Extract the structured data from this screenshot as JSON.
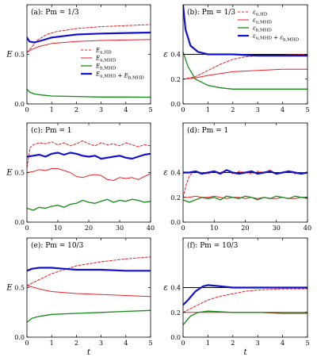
{
  "colors": {
    "red": "#e8222a",
    "green": "#158a16",
    "blue": "#1212cc",
    "black": "#000000",
    "axis": "#000000"
  },
  "chart_data": [
    {
      "id": "a",
      "type": "line",
      "annotation": "(a): Pm = 1/3",
      "xlabel": "",
      "ylabel": "E",
      "xlim": [
        0,
        5
      ],
      "ylim": [
        0,
        1.0
      ],
      "xticks": [
        "0",
        "1",
        "2",
        "3",
        "4",
        "5"
      ],
      "yticks": [
        "0.0",
        "0.5"
      ],
      "ytick_values": [
        0,
        0.5
      ],
      "legend": {
        "placement": "lower-right",
        "entries": [
          "E_u,HD",
          "E_u,MHD",
          "E_b,MHD",
          "E_u,MHD + E_b,MHD"
        ]
      },
      "series": [
        {
          "name": "E_u,HD",
          "color": "red",
          "dash": true,
          "width": 1,
          "x": [
            0,
            0.15,
            0.4,
            0.8,
            1.2,
            2,
            3,
            4,
            5
          ],
          "y": [
            0.52,
            0.56,
            0.64,
            0.7,
            0.73,
            0.76,
            0.78,
            0.79,
            0.8
          ]
        },
        {
          "name": "E_u,MHD",
          "color": "red",
          "width": 1,
          "x": [
            0,
            0.2,
            0.5,
            1,
            2,
            3,
            4,
            5
          ],
          "y": [
            0.52,
            0.55,
            0.58,
            0.61,
            0.63,
            0.64,
            0.645,
            0.65
          ]
        },
        {
          "name": "E_b,MHD",
          "color": "green",
          "width": 1.3,
          "x": [
            0,
            0.1,
            0.3,
            0.6,
            1,
            2,
            3,
            4,
            5
          ],
          "y": [
            0.15,
            0.12,
            0.1,
            0.09,
            0.08,
            0.075,
            0.07,
            0.07,
            0.068
          ]
        },
        {
          "name": "E_u,MHD + E_b,MHD",
          "color": "blue",
          "width": 2.2,
          "x": [
            0,
            0.1,
            0.3,
            0.6,
            1,
            2,
            3,
            4,
            5
          ],
          "y": [
            0.67,
            0.63,
            0.62,
            0.64,
            0.67,
            0.7,
            0.71,
            0.715,
            0.72
          ]
        }
      ]
    },
    {
      "id": "b",
      "type": "line",
      "annotation": "(b): Pm = 1/3",
      "xlabel": "",
      "ylabel": "ε",
      "xlim": [
        0,
        5
      ],
      "ylim": [
        0,
        0.8
      ],
      "xticks": [
        "0",
        "1",
        "2",
        "3",
        "4",
        "5"
      ],
      "yticks": [
        "0.0",
        "0.2",
        "0.4"
      ],
      "ytick_values": [
        0,
        0.2,
        0.4
      ],
      "legend": {
        "placement": "upper-right",
        "entries": [
          "ε_u,HD",
          "ε_u,MHD",
          "ε_b,MHD",
          "ε_u,MHD + ε_b,MHD"
        ]
      },
      "series": [
        {
          "name": "ref",
          "color": "black",
          "width": 1,
          "x": [
            0,
            5
          ],
          "y": [
            0.4,
            0.4
          ]
        },
        {
          "name": "ε_u,HD",
          "color": "red",
          "dash": true,
          "width": 1,
          "x": [
            0,
            0.5,
            1,
            1.5,
            2,
            2.5,
            3,
            4,
            5
          ],
          "y": [
            0.2,
            0.22,
            0.27,
            0.32,
            0.36,
            0.38,
            0.39,
            0.395,
            0.4
          ]
        },
        {
          "name": "ε_u,MHD",
          "color": "red",
          "width": 1,
          "x": [
            0,
            0.5,
            1,
            2,
            3,
            4,
            5
          ],
          "y": [
            0.2,
            0.21,
            0.23,
            0.26,
            0.27,
            0.28,
            0.28
          ]
        },
        {
          "name": "ε_b,MHD",
          "color": "green",
          "width": 1.3,
          "x": [
            0,
            0.2,
            0.5,
            1,
            1.5,
            2,
            3,
            4,
            5
          ],
          "y": [
            0.42,
            0.3,
            0.2,
            0.15,
            0.13,
            0.12,
            0.12,
            0.12,
            0.12
          ]
        },
        {
          "name": "ε_u,MHD + ε_b,MHD",
          "color": "blue",
          "width": 2.2,
          "x": [
            0,
            0.1,
            0.3,
            0.6,
            1,
            2,
            3,
            4,
            5
          ],
          "y": [
            0.8,
            0.6,
            0.47,
            0.42,
            0.4,
            0.4,
            0.39,
            0.39,
            0.39
          ]
        }
      ]
    },
    {
      "id": "c",
      "type": "line",
      "annotation": "(c): Pm = 1",
      "xlabel": "",
      "ylabel": "E",
      "xlim": [
        0,
        40
      ],
      "ylim": [
        0,
        1.0
      ],
      "xticks": [
        "0",
        "10",
        "20",
        "30",
        "40"
      ],
      "yticks": [
        "0.0",
        "0.5"
      ],
      "ytick_values": [
        0,
        0.5
      ],
      "series": [
        {
          "name": "E_u,HD",
          "color": "red",
          "dash": true,
          "width": 1,
          "x": [
            0,
            1,
            2,
            4,
            6,
            8,
            10,
            12,
            14,
            16,
            18,
            20,
            22,
            24,
            26,
            28,
            30,
            32,
            34,
            36,
            38,
            40
          ],
          "y": [
            0.55,
            0.75,
            0.78,
            0.8,
            0.79,
            0.81,
            0.78,
            0.8,
            0.77,
            0.79,
            0.82,
            0.79,
            0.77,
            0.8,
            0.78,
            0.79,
            0.77,
            0.8,
            0.78,
            0.76,
            0.78,
            0.77
          ]
        },
        {
          "name": "E_u,MHD",
          "color": "red",
          "width": 1,
          "x": [
            0,
            2,
            4,
            6,
            8,
            10,
            12,
            14,
            16,
            18,
            20,
            22,
            24,
            26,
            28,
            30,
            32,
            34,
            36,
            38,
            40
          ],
          "y": [
            0.5,
            0.51,
            0.53,
            0.52,
            0.54,
            0.54,
            0.52,
            0.5,
            0.46,
            0.45,
            0.47,
            0.48,
            0.47,
            0.43,
            0.42,
            0.45,
            0.44,
            0.45,
            0.43,
            0.46,
            0.49
          ]
        },
        {
          "name": "E_b,MHD",
          "color": "green",
          "width": 1.3,
          "x": [
            0,
            2,
            4,
            6,
            8,
            10,
            12,
            14,
            16,
            18,
            20,
            22,
            24,
            26,
            28,
            30,
            32,
            34,
            36,
            38,
            40
          ],
          "y": [
            0.14,
            0.12,
            0.15,
            0.14,
            0.16,
            0.17,
            0.15,
            0.18,
            0.19,
            0.22,
            0.2,
            0.19,
            0.21,
            0.23,
            0.2,
            0.22,
            0.21,
            0.23,
            0.22,
            0.2,
            0.21
          ]
        },
        {
          "name": "E_u,MHD + E_b,MHD",
          "color": "blue",
          "width": 2.2,
          "x": [
            0,
            2,
            4,
            6,
            8,
            10,
            12,
            14,
            16,
            18,
            20,
            22,
            24,
            26,
            28,
            30,
            32,
            34,
            36,
            38,
            40
          ],
          "y": [
            0.66,
            0.67,
            0.68,
            0.66,
            0.69,
            0.7,
            0.68,
            0.7,
            0.69,
            0.67,
            0.66,
            0.67,
            0.64,
            0.65,
            0.66,
            0.67,
            0.65,
            0.64,
            0.66,
            0.68,
            0.69
          ]
        }
      ]
    },
    {
      "id": "d",
      "type": "line",
      "annotation": "(d): Pm = 1",
      "xlabel": "",
      "ylabel": "ε",
      "xlim": [
        0,
        40
      ],
      "ylim": [
        0,
        0.8
      ],
      "xticks": [
        "0",
        "10",
        "20",
        "30",
        "40"
      ],
      "yticks": [
        "0.0",
        "0.2",
        "0.4"
      ],
      "ytick_values": [
        0,
        0.2,
        0.4
      ],
      "series": [
        {
          "name": "ref",
          "color": "black",
          "width": 1,
          "x": [
            0,
            40
          ],
          "y": [
            0.4,
            0.4
          ]
        },
        {
          "name": "ε_u,HD",
          "color": "red",
          "dash": true,
          "width": 1,
          "x": [
            0,
            1,
            2,
            3,
            4,
            6,
            8,
            10,
            12,
            14,
            16,
            18,
            20,
            22,
            24,
            26,
            28,
            30,
            32,
            34,
            36,
            38,
            40
          ],
          "y": [
            0.2,
            0.3,
            0.37,
            0.4,
            0.41,
            0.4,
            0.39,
            0.41,
            0.4,
            0.42,
            0.39,
            0.41,
            0.4,
            0.39,
            0.41,
            0.4,
            0.42,
            0.39,
            0.4,
            0.41,
            0.39,
            0.4,
            0.4
          ]
        },
        {
          "name": "ε_u,MHD",
          "color": "red",
          "width": 1,
          "x": [
            0,
            2,
            4,
            6,
            8,
            10,
            12,
            14,
            16,
            18,
            20,
            22,
            24,
            26,
            28,
            30,
            32,
            34,
            36,
            38,
            40
          ],
          "y": [
            0.2,
            0.2,
            0.21,
            0.2,
            0.2,
            0.21,
            0.2,
            0.19,
            0.2,
            0.2,
            0.19,
            0.2,
            0.19,
            0.2,
            0.19,
            0.19,
            0.2,
            0.19,
            0.19,
            0.2,
            0.19
          ]
        },
        {
          "name": "ε_b,MHD",
          "color": "green",
          "width": 1.3,
          "x": [
            0,
            2,
            4,
            6,
            8,
            10,
            12,
            14,
            16,
            18,
            20,
            22,
            24,
            26,
            28,
            30,
            32,
            34,
            36,
            38,
            40
          ],
          "y": [
            0.18,
            0.16,
            0.18,
            0.2,
            0.19,
            0.2,
            0.18,
            0.21,
            0.2,
            0.19,
            0.21,
            0.2,
            0.18,
            0.2,
            0.19,
            0.21,
            0.2,
            0.19,
            0.21,
            0.2,
            0.2
          ]
        },
        {
          "name": "ε_u,MHD + ε_b,MHD",
          "color": "blue",
          "width": 2.2,
          "x": [
            0,
            2,
            4,
            6,
            8,
            10,
            12,
            14,
            16,
            18,
            20,
            22,
            24,
            26,
            28,
            30,
            32,
            34,
            36,
            38,
            40
          ],
          "y": [
            0.4,
            0.4,
            0.41,
            0.39,
            0.4,
            0.41,
            0.39,
            0.42,
            0.4,
            0.39,
            0.4,
            0.41,
            0.39,
            0.4,
            0.41,
            0.39,
            0.4,
            0.41,
            0.4,
            0.39,
            0.4
          ]
        }
      ]
    },
    {
      "id": "e",
      "type": "line",
      "annotation": "(e): Pm = 10/3",
      "xlabel": "t",
      "ylabel": "E",
      "xlim": [
        0,
        5
      ],
      "ylim": [
        0,
        1.0
      ],
      "xticks": [
        "0",
        "1",
        "2",
        "3",
        "4",
        "5"
      ],
      "yticks": [
        "0.0",
        "0.5"
      ],
      "ytick_values": [
        0,
        0.5
      ],
      "series": [
        {
          "name": "E_u,HD",
          "color": "red",
          "dash": true,
          "width": 1,
          "x": [
            0,
            0.5,
            1,
            1.5,
            2,
            3,
            4,
            5
          ],
          "y": [
            0.52,
            0.58,
            0.64,
            0.68,
            0.72,
            0.76,
            0.79,
            0.81
          ]
        },
        {
          "name": "E_u,MHD",
          "color": "red",
          "width": 1,
          "x": [
            0,
            0.3,
            0.6,
            1,
            2,
            3,
            4,
            5
          ],
          "y": [
            0.52,
            0.5,
            0.48,
            0.46,
            0.44,
            0.43,
            0.42,
            0.41
          ]
        },
        {
          "name": "E_b,MHD",
          "color": "green",
          "width": 1.3,
          "x": [
            0,
            0.2,
            0.5,
            1,
            2,
            3,
            4,
            5
          ],
          "y": [
            0.15,
            0.19,
            0.21,
            0.23,
            0.24,
            0.25,
            0.26,
            0.27
          ]
        },
        {
          "name": "E_u,MHD + E_b,MHD",
          "color": "blue",
          "width": 2.2,
          "x": [
            0,
            0.2,
            0.5,
            1,
            1.5,
            2,
            3,
            4,
            5
          ],
          "y": [
            0.67,
            0.69,
            0.7,
            0.7,
            0.69,
            0.68,
            0.68,
            0.67,
            0.67
          ]
        }
      ]
    },
    {
      "id": "f",
      "type": "line",
      "annotation": "(f): Pm = 10/3",
      "xlabel": "t",
      "ylabel": "ε",
      "xlim": [
        0,
        5
      ],
      "ylim": [
        0,
        0.8
      ],
      "xticks": [
        "0",
        "1",
        "2",
        "3",
        "4",
        "5"
      ],
      "yticks": [
        "0.0",
        "0.2",
        "0.4"
      ],
      "ytick_values": [
        0,
        0.2,
        0.4
      ],
      "series": [
        {
          "name": "ref",
          "color": "black",
          "width": 1,
          "x": [
            0,
            5
          ],
          "y": [
            0.4,
            0.4
          ]
        },
        {
          "name": "ε_u,HD",
          "color": "red",
          "dash": true,
          "width": 1,
          "x": [
            0,
            0.5,
            1,
            1.5,
            2,
            2.5,
            3,
            4,
            5
          ],
          "y": [
            0.2,
            0.25,
            0.3,
            0.33,
            0.35,
            0.37,
            0.38,
            0.39,
            0.39
          ]
        },
        {
          "name": "ε_u,MHD",
          "color": "red",
          "width": 1,
          "x": [
            0,
            0.5,
            1,
            2,
            3,
            4,
            5
          ],
          "y": [
            0.2,
            0.2,
            0.2,
            0.2,
            0.2,
            0.19,
            0.19
          ]
        },
        {
          "name": "ε_b,MHD",
          "color": "green",
          "width": 1.3,
          "x": [
            0,
            0.3,
            0.6,
            1,
            2,
            3,
            4,
            5
          ],
          "y": [
            0.1,
            0.17,
            0.2,
            0.21,
            0.2,
            0.2,
            0.2,
            0.2
          ]
        },
        {
          "name": "ε_u,MHD + ε_b,MHD",
          "color": "blue",
          "width": 2.2,
          "x": [
            0,
            0.2,
            0.5,
            0.8,
            1,
            1.5,
            2,
            3,
            4,
            5
          ],
          "y": [
            0.26,
            0.3,
            0.37,
            0.41,
            0.42,
            0.41,
            0.4,
            0.4,
            0.4,
            0.4
          ]
        }
      ]
    }
  ]
}
